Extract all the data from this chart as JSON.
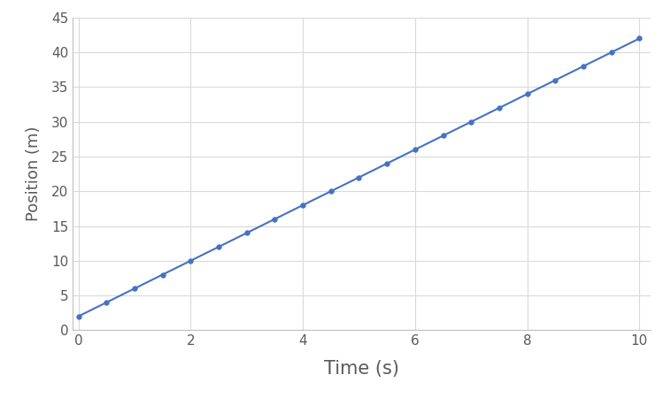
{
  "x_values": [
    0,
    0.5,
    1.0,
    1.5,
    2.0,
    2.5,
    3.0,
    3.5,
    4.0,
    4.5,
    5.0,
    5.5,
    6.0,
    6.5,
    7.0,
    7.5,
    8.0,
    8.5,
    9.0,
    9.5,
    10.0
  ],
  "y_values": [
    2,
    4,
    6,
    8,
    10,
    12,
    14,
    16,
    18,
    20,
    22,
    24,
    26,
    28,
    30,
    32,
    34,
    36,
    38,
    40,
    42
  ],
  "line_color": "#4472C4",
  "marker_color": "#4472C4",
  "marker_style": "o",
  "marker_size": 4,
  "line_width": 1.5,
  "xlabel": "Time (s)",
  "ylabel": "Position (m)",
  "xlim": [
    -0.1,
    10.2
  ],
  "ylim": [
    0,
    45
  ],
  "xticks": [
    0,
    2,
    4,
    6,
    8,
    10
  ],
  "yticks": [
    0,
    5,
    10,
    15,
    20,
    25,
    30,
    35,
    40,
    45
  ],
  "xlabel_fontsize": 15,
  "ylabel_fontsize": 13,
  "tick_fontsize": 11,
  "background_color": "#ffffff",
  "plot_bg_color": "#ffffff",
  "grid_color": "#d9d9d9",
  "grid_linewidth": 0.8,
  "spine_color": "#bfbfbf",
  "tick_color": "#595959"
}
